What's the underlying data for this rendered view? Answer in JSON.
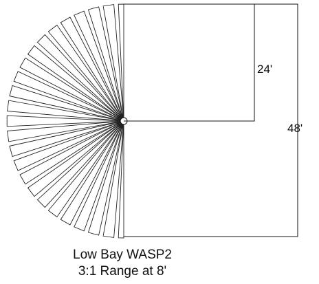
{
  "figure": {
    "dimension_labels": {
      "inner": "24'",
      "outer": "48'"
    },
    "caption": {
      "line1": "Low Bay WASP2",
      "line2": "3:1 Range at 8'"
    }
  }
}
